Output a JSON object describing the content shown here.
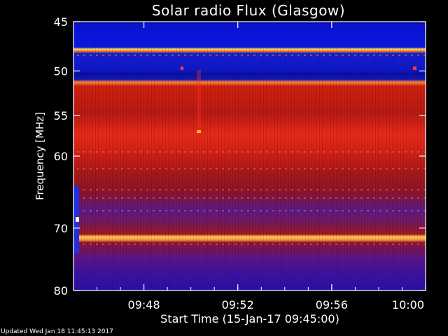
{
  "chart_data": {
    "type": "heatmap",
    "title": "Solar radio Flux (Glasgow)",
    "xlabel": "Start Time (15-Jan-17 09:45:00)",
    "ylabel": "Frequency [MHz]",
    "x_ticks": [
      "09:48",
      "09:52",
      "09:56",
      "10:00"
    ],
    "y_ticks": [
      45,
      50,
      55,
      60,
      70,
      80
    ],
    "y_scale": "log",
    "ylim": [
      45,
      80
    ],
    "x_range_minutes": [
      0,
      15
    ],
    "colormap": [
      "#0a0a8c",
      "#6a10a8",
      "#b01010",
      "#e83020",
      "#ff8a30",
      "#ffe870"
    ],
    "frequency_bands": [
      {
        "from": 45.0,
        "to": 45.4,
        "level": 0.0
      },
      {
        "from": 45.4,
        "to": 48.8,
        "level": 0.05
      },
      {
        "from": 48.8,
        "to": 49.2,
        "level": 0.95
      },
      {
        "from": 49.2,
        "to": 51.4,
        "level": 0.05
      },
      {
        "from": 51.4,
        "to": 52.5,
        "level": 0.15
      },
      {
        "from": 52.5,
        "to": 53.0,
        "level": 0.85
      },
      {
        "from": 53.0,
        "to": 56.5,
        "level": 0.45
      },
      {
        "from": 56.5,
        "to": 59.5,
        "level": 0.6
      },
      {
        "from": 59.5,
        "to": 66.0,
        "level": 0.38
      },
      {
        "from": 66.0,
        "to": 72.0,
        "level": 0.3
      },
      {
        "from": 72.0,
        "to": 72.6,
        "level": 0.95
      },
      {
        "from": 72.6,
        "to": 80.0,
        "level": 0.25
      }
    ]
  },
  "footer": {
    "updated": "Updated Wed Jan 18 11:45:13 2017"
  }
}
